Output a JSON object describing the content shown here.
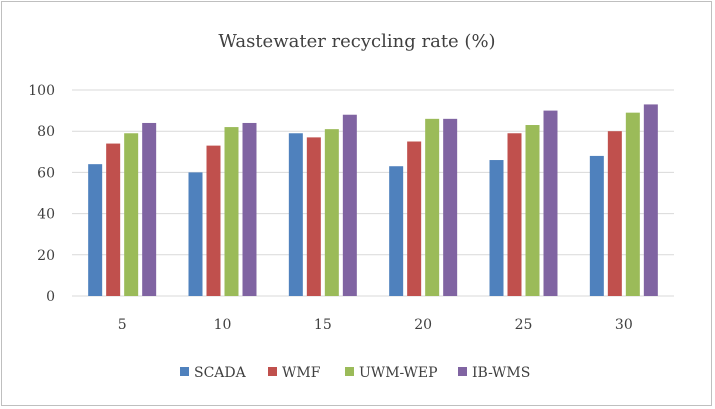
{
  "chart_data": {
    "type": "bar",
    "title": "Wastewater recycling rate (%)",
    "categories": [
      "5",
      "10",
      "15",
      "20",
      "25",
      "30"
    ],
    "ylim": [
      0,
      100
    ],
    "yticks": [
      0,
      20,
      40,
      60,
      80,
      100
    ],
    "grid": true,
    "legend_position": "bottom",
    "series": [
      {
        "name": "SCADA",
        "color": "#4f81bd",
        "values": [
          64,
          60,
          79,
          63,
          66,
          68
        ]
      },
      {
        "name": "WMF",
        "color": "#c0504d",
        "values": [
          74,
          73,
          77,
          75,
          79,
          80
        ]
      },
      {
        "name": "UWM-WEP",
        "color": "#9bbb59",
        "values": [
          79,
          82,
          81,
          86,
          83,
          89
        ]
      },
      {
        "name": "IB-WMS",
        "color": "#8064a2",
        "values": [
          84,
          84,
          88,
          86,
          90,
          93
        ]
      }
    ]
  }
}
